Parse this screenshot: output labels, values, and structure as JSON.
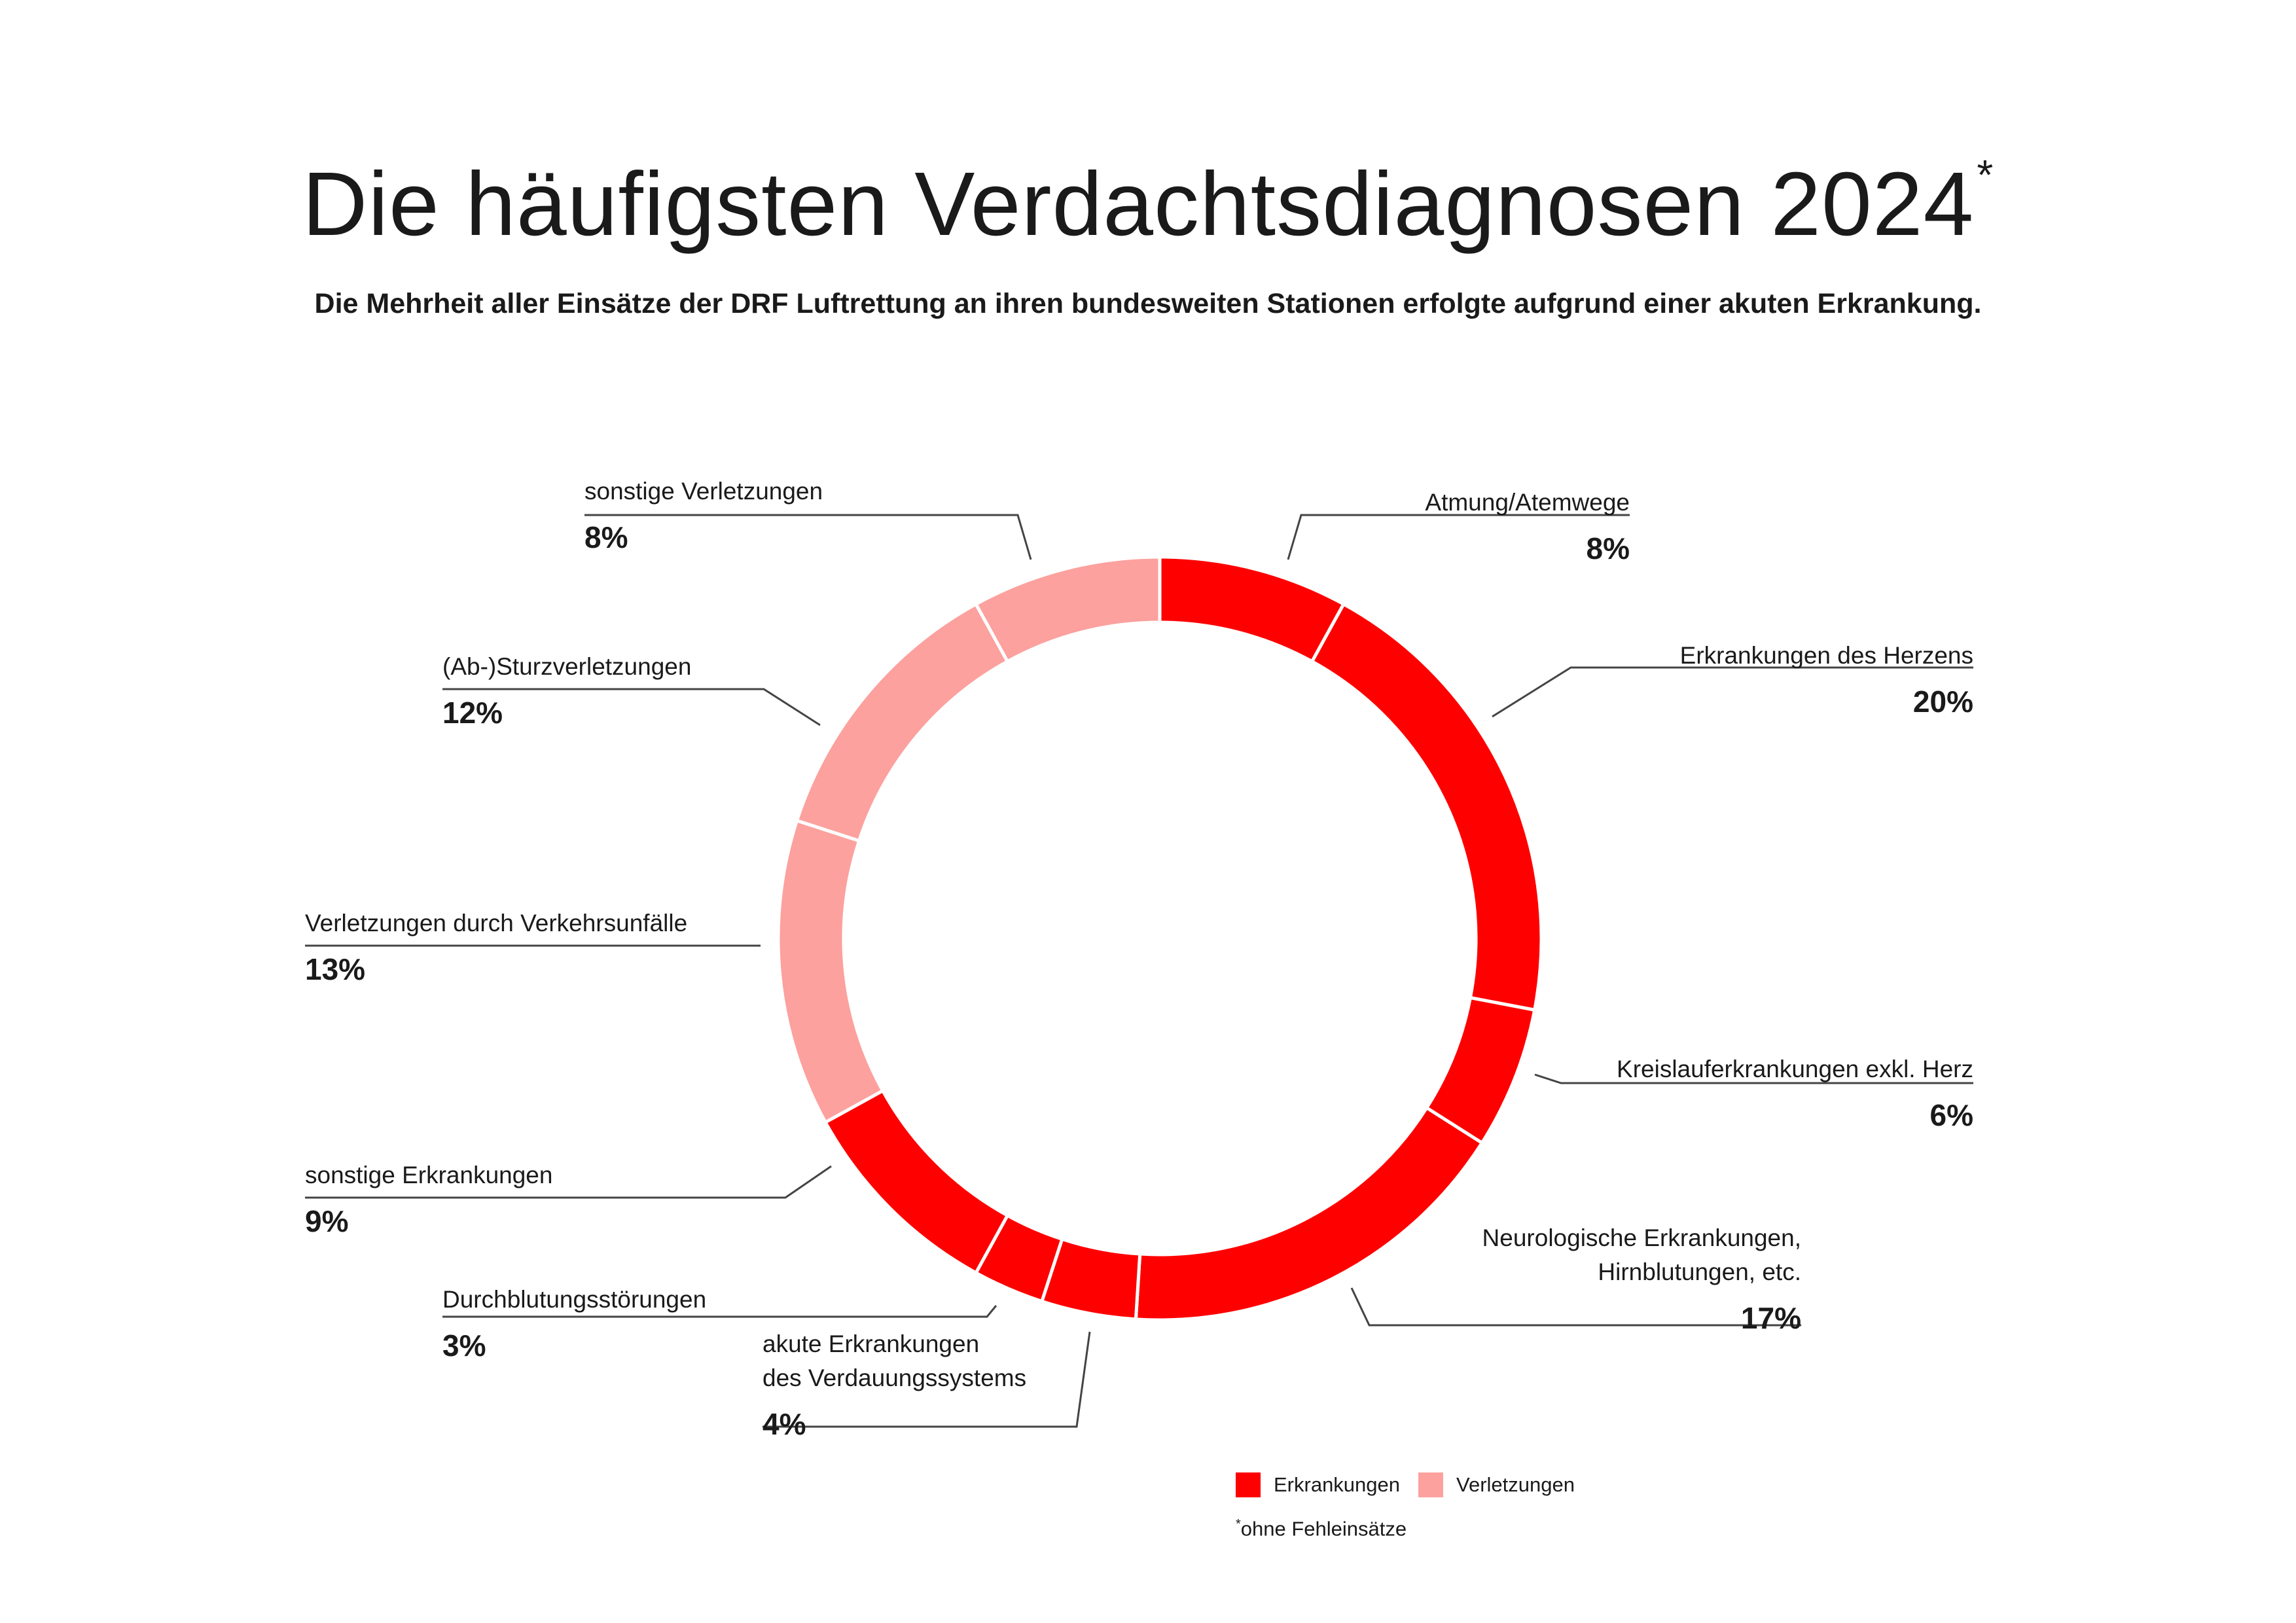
{
  "title": "Die häufigsten Verdachtsdiagnosen 2024",
  "title_mark": "*",
  "subtitle": "Die Mehrheit aller Einsätze der DRF Luftrettung an ihren bundesweiten Stationen erfolgte aufgrund einer akuten Erkrankung.",
  "colors": {
    "erkrankungen": "#ff0000",
    "verletzungen": "#fca19e",
    "separator": "#ffffff",
    "leader": "#444444"
  },
  "chart_data": {
    "type": "pie",
    "donut": true,
    "start": "top, clockwise",
    "slices": [
      {
        "label": "Atmung/Atemwege",
        "value": 8,
        "pct_text": "8%",
        "group": "Erkrankungen"
      },
      {
        "label": "Erkrankungen des Herzens",
        "value": 20,
        "pct_text": "20%",
        "group": "Erkrankungen"
      },
      {
        "label": "Kreislauferkrankungen exkl. Herz",
        "value": 6,
        "pct_text": "6%",
        "group": "Erkrankungen"
      },
      {
        "label": "Neurologische Erkrankungen,\nHirnblutungen, etc.",
        "value": 17,
        "pct_text": "17%",
        "group": "Erkrankungen"
      },
      {
        "label": "akute Erkrankungen\ndes Verdauungssystems",
        "value": 4,
        "pct_text": "4%",
        "group": "Erkrankungen"
      },
      {
        "label": "Durchblutungsstörungen",
        "value": 3,
        "pct_text": "3%",
        "group": "Erkrankungen"
      },
      {
        "label": "sonstige Erkrankungen",
        "value": 9,
        "pct_text": "9%",
        "group": "Erkrankungen"
      },
      {
        "label": "Verletzungen durch Verkehrsunfälle",
        "value": 13,
        "pct_text": "13%",
        "group": "Verletzungen"
      },
      {
        "label": "(Ab-)Sturzverletzungen",
        "value": 12,
        "pct_text": "12%",
        "group": "Verletzungen"
      },
      {
        "label": "sonstige Verletzungen",
        "value": 8,
        "pct_text": "8%",
        "group": "Verletzungen"
      }
    ],
    "legend": [
      "Erkrankungen",
      "Verletzungen"
    ],
    "legend_placement": "bottom-right"
  },
  "footnote_mark": "*",
  "footnote": "ohne Fehleinsätze"
}
